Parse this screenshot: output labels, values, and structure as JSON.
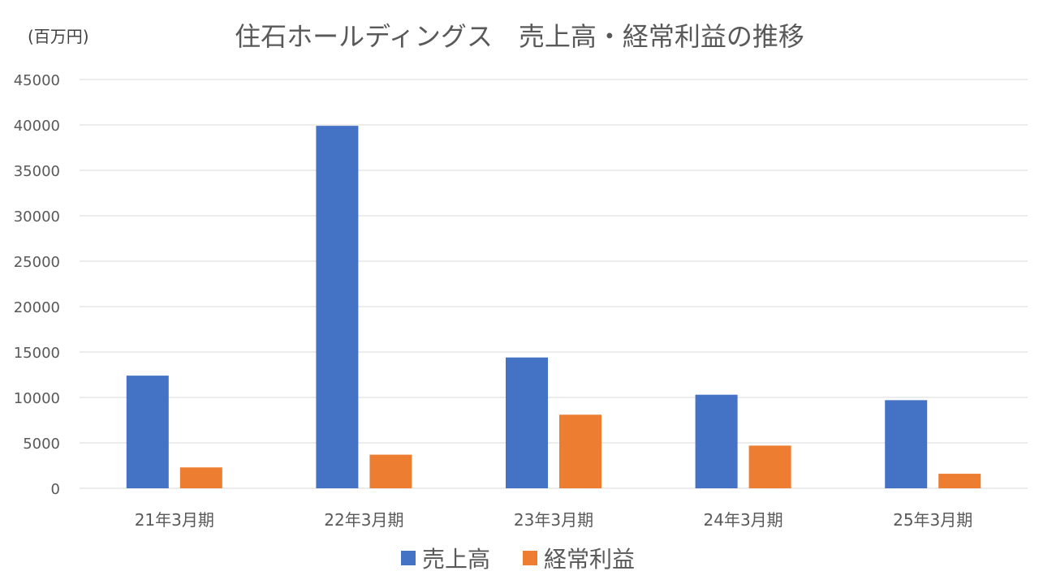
{
  "chart_data": {
    "type": "bar",
    "title": "住石ホールディングス　売上高・経常利益の推移",
    "unit_label": "(百万円)",
    "categories": [
      "21年3月期",
      "22年3月期",
      "23年3月期",
      "24年3月期",
      "25年3月期"
    ],
    "series": [
      {
        "name": "売上高",
        "color": "#4472C4",
        "values": [
          12400,
          39900,
          14400,
          10300,
          9700
        ]
      },
      {
        "name": "経常利益",
        "color": "#ED7D31",
        "values": [
          2300,
          3700,
          8100,
          4700,
          1600
        ]
      }
    ],
    "y_ticks": [
      "0",
      "5000",
      "10000",
      "15000",
      "20000",
      "25000",
      "30000",
      "35000",
      "40000",
      "45000"
    ],
    "ylim": [
      0,
      45000
    ],
    "grid": true,
    "legend_position": "bottom"
  }
}
